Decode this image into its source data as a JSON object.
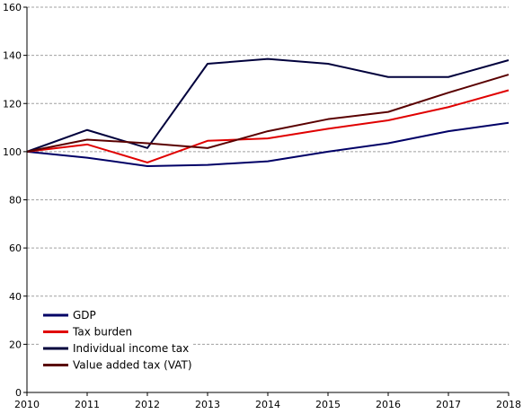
{
  "chart_data": {
    "type": "line",
    "x": [
      2010,
      2011,
      2012,
      2013,
      2014,
      2015,
      2016,
      2017,
      2018
    ],
    "x_tick_labels": [
      "2010",
      "2011",
      "2012",
      "2013",
      "2014",
      "2015",
      "2016",
      "2017",
      "2018"
    ],
    "y_tick_labels": [
      "0",
      "20",
      "40",
      "60",
      "80",
      "100",
      "120",
      "140",
      "160"
    ],
    "ylim": [
      0,
      160
    ],
    "xlim": [
      2010,
      2018
    ],
    "grid": "horizontal dashed",
    "legend_placement": "bottom-left",
    "series": [
      {
        "name": "GDP",
        "color": "#000066",
        "values": [
          100,
          97.5,
          94,
          94.5,
          96,
          100,
          103.5,
          108.5,
          112
        ]
      },
      {
        "name": "Tax burden",
        "color": "#e00000",
        "values": [
          100,
          103,
          95.5,
          104.5,
          105.5,
          109.5,
          113,
          118.5,
          125.5
        ]
      },
      {
        "name": "Individual income tax",
        "color": "#00003c",
        "values": [
          100,
          109,
          101.5,
          136.5,
          138.5,
          136.5,
          131,
          131,
          138
        ]
      },
      {
        "name": "Value added tax (VAT)",
        "color": "#5a0000",
        "values": [
          100,
          105,
          103.5,
          101.5,
          108.5,
          113.5,
          116.5,
          124.5,
          132
        ]
      }
    ]
  }
}
